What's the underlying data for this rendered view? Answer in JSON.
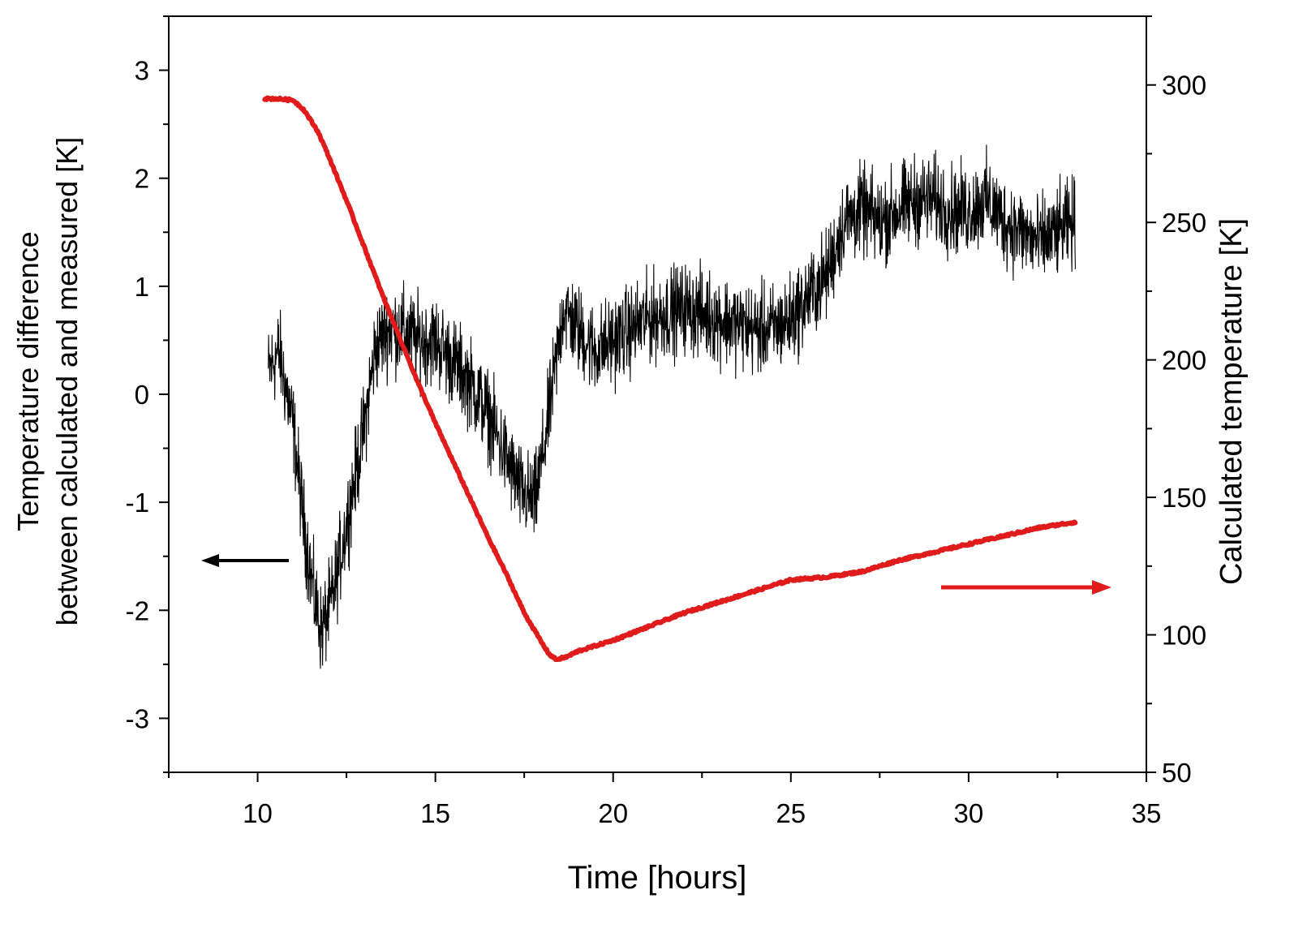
{
  "chart_data": {
    "type": "line",
    "x_axis": {
      "label": "Time [hours]",
      "range": [
        7.5,
        35
      ],
      "ticks": [
        "10",
        "15",
        "20",
        "25",
        "30",
        "35"
      ],
      "tick_values": [
        10,
        15,
        20,
        25,
        30,
        35
      ]
    },
    "y_left": {
      "label_line1": "Temperature difference",
      "label_line2": "between calculated and measured [K]",
      "range": [
        -3.5,
        3.5
      ],
      "ticks": [
        "3",
        "2",
        "1",
        "0",
        "-1",
        "-2",
        "-3"
      ],
      "tick_values": [
        3,
        2,
        1,
        0,
        -1,
        -2,
        -3
      ]
    },
    "y_right": {
      "label": "Calculated temperature [K]",
      "range": [
        50,
        325
      ],
      "ticks": [
        "300",
        "250",
        "200",
        "150",
        "100",
        "50"
      ],
      "tick_values": [
        300,
        250,
        200,
        150,
        100,
        50
      ]
    },
    "series": [
      {
        "axis": "left",
        "color": "#000000",
        "noise_amplitude": 0.45,
        "x": [
          10.3,
          10.6,
          11.0,
          11.3,
          11.6,
          11.8,
          12.1,
          12.5,
          13.0,
          13.3,
          13.6,
          14.0,
          14.5,
          15.0,
          15.5,
          16.0,
          16.5,
          17.0,
          17.4,
          17.8,
          18.1,
          18.4,
          18.6,
          19.0,
          19.5,
          20.0,
          21.0,
          22.0,
          23.0,
          24.0,
          24.5,
          25.0,
          25.5,
          26.0,
          26.5,
          27.0,
          27.5,
          28.0,
          28.5,
          29.0,
          29.5,
          30.0,
          30.5,
          31.0,
          31.5,
          32.0,
          32.5,
          33.0
        ],
        "y": [
          0.2,
          0.4,
          -0.3,
          -1.2,
          -1.9,
          -2.2,
          -1.9,
          -1.2,
          -0.3,
          0.4,
          0.6,
          0.6,
          0.5,
          0.5,
          0.3,
          0.1,
          -0.2,
          -0.6,
          -0.9,
          -1.0,
          -0.4,
          0.3,
          0.8,
          0.6,
          0.4,
          0.5,
          0.7,
          0.8,
          0.7,
          0.6,
          0.6,
          0.7,
          0.9,
          1.1,
          1.6,
          1.7,
          1.6,
          1.7,
          1.8,
          1.8,
          1.7,
          1.7,
          1.8,
          1.6,
          1.5,
          1.4,
          1.5,
          1.6
        ]
      },
      {
        "axis": "right",
        "color": "#e01b1b",
        "x": [
          10.2,
          10.5,
          11.0,
          11.3,
          11.7,
          12.0,
          12.5,
          13.0,
          13.5,
          14.0,
          14.5,
          15.0,
          15.5,
          16.0,
          16.5,
          17.0,
          17.5,
          18.0,
          18.2,
          18.4,
          18.7,
          19.0,
          19.5,
          20.0,
          21.0,
          22.0,
          23.0,
          24.0,
          25.0,
          26.0,
          27.0,
          28.0,
          29.0,
          30.0,
          31.0,
          32.0,
          33.0
        ],
        "y": [
          295,
          295,
          294.5,
          291,
          283,
          274,
          258,
          241,
          224,
          208,
          192,
          177,
          163,
          149,
          135,
          122,
          108,
          97,
          93,
          91,
          92,
          94,
          96,
          98,
          103,
          108,
          112,
          116,
          120,
          121,
          123,
          127,
          130,
          133,
          136,
          139,
          141
        ]
      }
    ],
    "arrows": [
      {
        "axis": "left",
        "direction": "left",
        "color": "#000000"
      },
      {
        "axis": "right",
        "direction": "right",
        "color": "#e01b1b"
      }
    ],
    "grid": false
  }
}
